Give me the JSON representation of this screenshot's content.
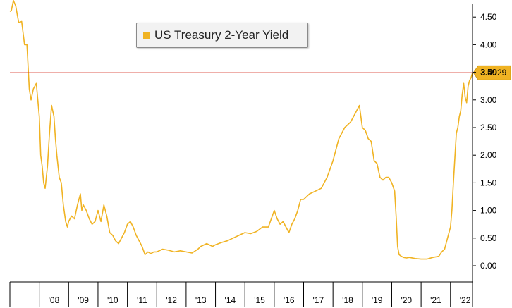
{
  "legend": {
    "label": "US Treasury 2-Year Yield",
    "color": "#f0b323"
  },
  "last_value": {
    "label": "3.4929",
    "color": "#f0b323"
  },
  "reference_line_color": "#d42a1d",
  "chart_data": {
    "type": "line",
    "title": "",
    "xlabel": "",
    "ylabel": "",
    "ylim": [
      -0.25,
      4.6
    ],
    "y_ticks": [
      0.0,
      0.5,
      1.0,
      1.5,
      2.0,
      2.5,
      3.0,
      3.5,
      4.0,
      4.5
    ],
    "y_tick_labels": [
      "0.00",
      "0.50",
      "1.00",
      "1.50",
      "2.00",
      "2.50",
      "3.00",
      "3.50",
      "4.00",
      "4.50"
    ],
    "x_tick_labels": [
      "'08",
      "'09",
      "'10",
      "'11",
      "'12",
      "'13",
      "'14",
      "'15",
      "'16",
      "'17",
      "'18",
      "'19",
      "'20",
      "'21",
      "'22"
    ],
    "x_range": [
      2007.0,
      2022.75
    ],
    "horizontal_line": 3.4929,
    "grid": false,
    "legend_position": "top-center",
    "y_axis_position": "right",
    "series": [
      {
        "name": "US Treasury 2-Year Yield",
        "color": "#f0b323",
        "x": [
          2007.0,
          2007.05,
          2007.12,
          2007.2,
          2007.3,
          2007.4,
          2007.5,
          2007.58,
          2007.66,
          2007.72,
          2007.8,
          2007.9,
          2007.95,
          2008.0,
          2008.05,
          2008.1,
          2008.15,
          2008.2,
          2008.28,
          2008.35,
          2008.42,
          2008.5,
          2008.55,
          2008.6,
          2008.68,
          2008.75,
          2008.82,
          2008.9,
          2008.96,
          2009.0,
          2009.1,
          2009.2,
          2009.3,
          2009.4,
          2009.45,
          2009.5,
          2009.6,
          2009.7,
          2009.8,
          2009.9,
          2010.0,
          2010.1,
          2010.2,
          2010.3,
          2010.4,
          2010.5,
          2010.6,
          2010.7,
          2010.8,
          2010.9,
          2011.0,
          2011.1,
          2011.2,
          2011.3,
          2011.4,
          2011.5,
          2011.6,
          2011.7,
          2011.8,
          2011.9,
          2012.0,
          2012.2,
          2012.4,
          2012.6,
          2012.8,
          2013.0,
          2013.2,
          2013.4,
          2013.5,
          2013.7,
          2013.9,
          2014.0,
          2014.2,
          2014.4,
          2014.6,
          2014.8,
          2015.0,
          2015.2,
          2015.4,
          2015.6,
          2015.8,
          2016.0,
          2016.1,
          2016.2,
          2016.3,
          2016.4,
          2016.5,
          2016.6,
          2016.7,
          2016.8,
          2016.9,
          2017.0,
          2017.2,
          2017.4,
          2017.6,
          2017.8,
          2018.0,
          2018.2,
          2018.4,
          2018.6,
          2018.8,
          2018.9,
          2019.0,
          2019.1,
          2019.2,
          2019.3,
          2019.4,
          2019.5,
          2019.6,
          2019.7,
          2019.8,
          2019.9,
          2020.0,
          2020.1,
          2020.15,
          2020.2,
          2020.25,
          2020.3,
          2020.4,
          2020.5,
          2020.6,
          2020.8,
          2021.0,
          2021.2,
          2021.4,
          2021.6,
          2021.7,
          2021.8,
          2021.9,
          2022.0,
          2022.05,
          2022.1,
          2022.15,
          2022.2,
          2022.25,
          2022.3,
          2022.35,
          2022.4,
          2022.45,
          2022.5,
          2022.55,
          2022.6,
          2022.65,
          2022.7,
          2022.75
        ],
        "y": [
          4.6,
          4.62,
          4.8,
          4.7,
          4.4,
          4.42,
          4.0,
          4.0,
          3.2,
          3.0,
          3.2,
          3.3,
          3.0,
          2.7,
          2.0,
          1.8,
          1.5,
          1.4,
          1.8,
          2.4,
          2.9,
          2.7,
          2.3,
          2.0,
          1.6,
          1.5,
          1.1,
          0.8,
          0.7,
          0.8,
          0.9,
          0.85,
          1.1,
          1.3,
          1.0,
          1.1,
          1.0,
          0.85,
          0.75,
          0.8,
          1.0,
          0.8,
          1.1,
          0.9,
          0.6,
          0.55,
          0.45,
          0.4,
          0.5,
          0.6,
          0.75,
          0.8,
          0.7,
          0.55,
          0.45,
          0.35,
          0.2,
          0.25,
          0.22,
          0.25,
          0.25,
          0.3,
          0.28,
          0.25,
          0.27,
          0.25,
          0.23,
          0.3,
          0.35,
          0.4,
          0.35,
          0.38,
          0.42,
          0.45,
          0.5,
          0.55,
          0.6,
          0.58,
          0.62,
          0.7,
          0.7,
          1.0,
          0.85,
          0.75,
          0.8,
          0.7,
          0.6,
          0.75,
          0.85,
          1.0,
          1.2,
          1.2,
          1.3,
          1.35,
          1.4,
          1.6,
          1.9,
          2.3,
          2.5,
          2.6,
          2.8,
          2.9,
          2.5,
          2.45,
          2.3,
          2.25,
          1.9,
          1.85,
          1.6,
          1.55,
          1.6,
          1.6,
          1.5,
          1.35,
          0.9,
          0.35,
          0.2,
          0.18,
          0.15,
          0.14,
          0.15,
          0.13,
          0.12,
          0.12,
          0.15,
          0.17,
          0.25,
          0.3,
          0.5,
          0.7,
          1.0,
          1.5,
          1.95,
          2.4,
          2.5,
          2.7,
          2.8,
          3.1,
          3.3,
          3.05,
          2.95,
          3.25,
          3.35,
          3.4,
          3.4929
        ]
      }
    ]
  }
}
